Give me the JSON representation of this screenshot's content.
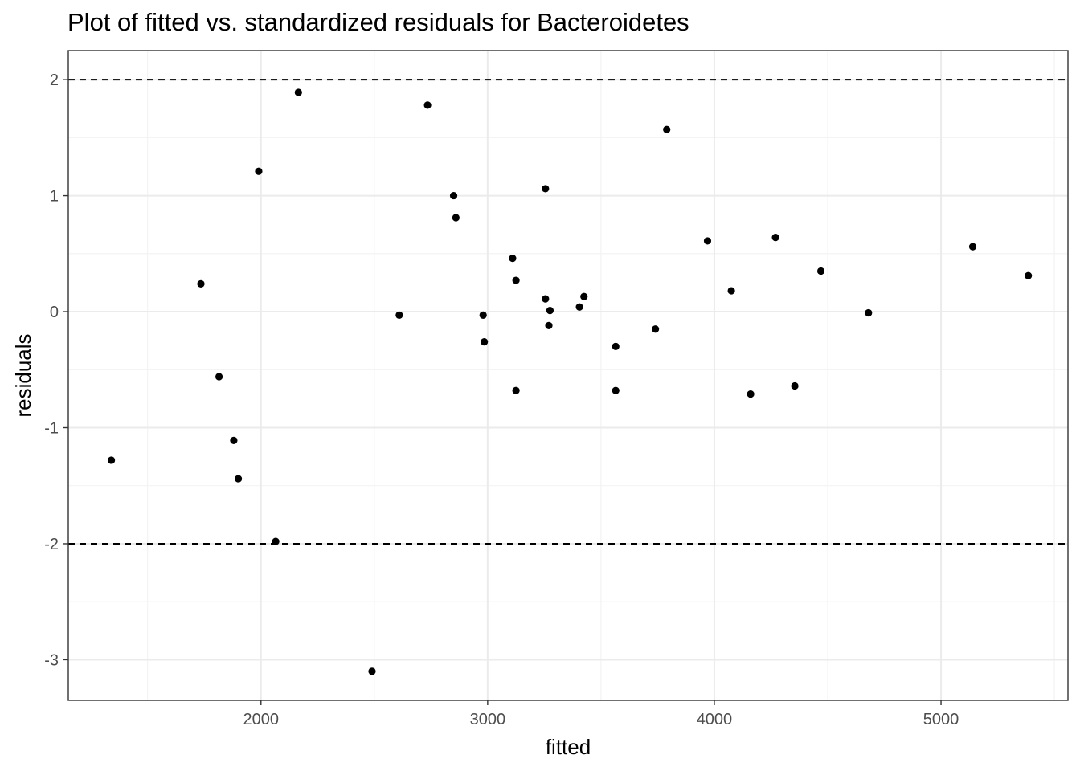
{
  "chart_data": {
    "type": "scatter",
    "title": "Plot of fitted vs. standardized residuals for Bacteroidetes",
    "xlabel": "fitted",
    "ylabel": "residuals",
    "xlim": [
      1150,
      5560
    ],
    "ylim": [
      -3.35,
      2.25
    ],
    "x_ticks": [
      2000,
      3000,
      4000,
      5000
    ],
    "x_minor_ticks": [
      1500,
      2500,
      3500,
      4500,
      5500
    ],
    "y_ticks": [
      -3,
      -2,
      -1,
      0,
      1,
      2
    ],
    "y_minor_ticks": [
      -2.5,
      -1.5,
      -0.5,
      0.5,
      1.5
    ],
    "reference_lines": [
      2,
      -2
    ],
    "grid": true,
    "points": [
      {
        "x": 1340,
        "y": -1.28
      },
      {
        "x": 1735,
        "y": 0.24
      },
      {
        "x": 1815,
        "y": -0.56
      },
      {
        "x": 1880,
        "y": -1.11
      },
      {
        "x": 1900,
        "y": -1.44
      },
      {
        "x": 1990,
        "y": 1.21
      },
      {
        "x": 2065,
        "y": -1.98
      },
      {
        "x": 2165,
        "y": 1.89
      },
      {
        "x": 2490,
        "y": -3.1
      },
      {
        "x": 2610,
        "y": -0.03
      },
      {
        "x": 2735,
        "y": 1.78
      },
      {
        "x": 2850,
        "y": 1.0
      },
      {
        "x": 2860,
        "y": 0.81
      },
      {
        "x": 2980,
        "y": -0.03
      },
      {
        "x": 2985,
        "y": -0.26
      },
      {
        "x": 3110,
        "y": 0.46
      },
      {
        "x": 3125,
        "y": 0.27
      },
      {
        "x": 3125,
        "y": -0.68
      },
      {
        "x": 3255,
        "y": 0.11
      },
      {
        "x": 3255,
        "y": 1.06
      },
      {
        "x": 3270,
        "y": -0.12
      },
      {
        "x": 3275,
        "y": 0.01
      },
      {
        "x": 3405,
        "y": 0.04
      },
      {
        "x": 3425,
        "y": 0.13
      },
      {
        "x": 3565,
        "y": -0.3
      },
      {
        "x": 3565,
        "y": -0.68
      },
      {
        "x": 3740,
        "y": -0.15
      },
      {
        "x": 3790,
        "y": 1.57
      },
      {
        "x": 3970,
        "y": 0.61
      },
      {
        "x": 4075,
        "y": 0.18
      },
      {
        "x": 4160,
        "y": -0.71
      },
      {
        "x": 4270,
        "y": 0.64
      },
      {
        "x": 4355,
        "y": -0.64
      },
      {
        "x": 4470,
        "y": 0.35
      },
      {
        "x": 4680,
        "y": -0.01
      },
      {
        "x": 5140,
        "y": 0.56
      },
      {
        "x": 5385,
        "y": 0.31
      }
    ],
    "point_color": "#000000",
    "reference_line_style": "dashed"
  }
}
